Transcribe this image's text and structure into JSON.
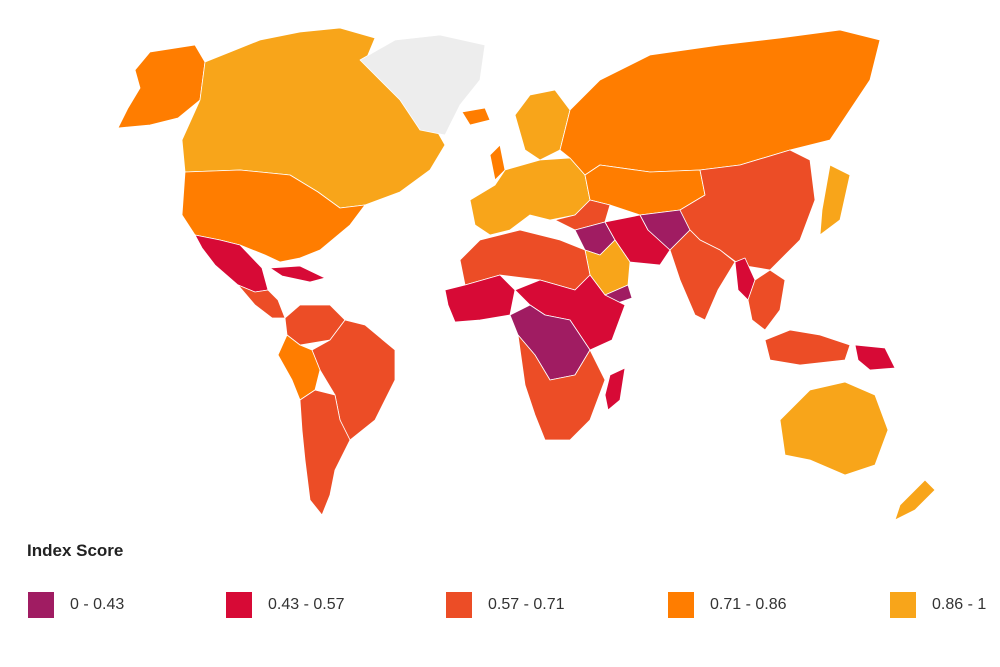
{
  "legend": {
    "title": "Index Score",
    "items": [
      {
        "label": "0 - 0.43",
        "color": "#a01c62"
      },
      {
        "label": "0.43 - 0.57",
        "color": "#d70a36"
      },
      {
        "label": "0.57 - 0.71",
        "color": "#ec4d26"
      },
      {
        "label": "0.71 - 0.86",
        "color": "#ff7d00"
      },
      {
        "label": "0.86 - 1",
        "color": "#f8a51a"
      }
    ],
    "no_data_color": "#ededed"
  },
  "regions": [
    {
      "name": "alaska",
      "band": 3
    },
    {
      "name": "canada",
      "band": 4
    },
    {
      "name": "greenland",
      "band": -1
    },
    {
      "name": "usa",
      "band": 3
    },
    {
      "name": "mexico",
      "band": 1
    },
    {
      "name": "central-america",
      "band": 2
    },
    {
      "name": "caribbean",
      "band": 1
    },
    {
      "name": "colombia-venezuela",
      "band": 2
    },
    {
      "name": "brazil",
      "band": 2
    },
    {
      "name": "andean-west",
      "band": 3
    },
    {
      "name": "southern-cone",
      "band": 2
    },
    {
      "name": "iceland",
      "band": 3
    },
    {
      "name": "scandinavia",
      "band": 4
    },
    {
      "name": "europe",
      "band": 4
    },
    {
      "name": "uk",
      "band": 3
    },
    {
      "name": "russia",
      "band": 3
    },
    {
      "name": "central-asia",
      "band": 3
    },
    {
      "name": "turkey",
      "band": 2
    },
    {
      "name": "levant-iraq",
      "band": 0
    },
    {
      "name": "iran-pakistan",
      "band": 1
    },
    {
      "name": "afghanistan",
      "band": 0
    },
    {
      "name": "arabia",
      "band": 4
    },
    {
      "name": "yemen",
      "band": 0
    },
    {
      "name": "north-africa",
      "band": 2
    },
    {
      "name": "west-africa",
      "band": 1
    },
    {
      "name": "central-east-africa",
      "band": 1
    },
    {
      "name": "central-africa",
      "band": 0
    },
    {
      "name": "southern-africa",
      "band": 2
    },
    {
      "name": "madagascar",
      "band": 1
    },
    {
      "name": "china",
      "band": 2
    },
    {
      "name": "india",
      "band": 2
    },
    {
      "name": "myanmar",
      "band": 1
    },
    {
      "name": "southeast-asia",
      "band": 2
    },
    {
      "name": "japan",
      "band": 4
    },
    {
      "name": "indonesia",
      "band": 2
    },
    {
      "name": "papua-new-guinea",
      "band": 1
    },
    {
      "name": "australia",
      "band": 4
    },
    {
      "name": "new-zealand",
      "band": 4
    }
  ]
}
